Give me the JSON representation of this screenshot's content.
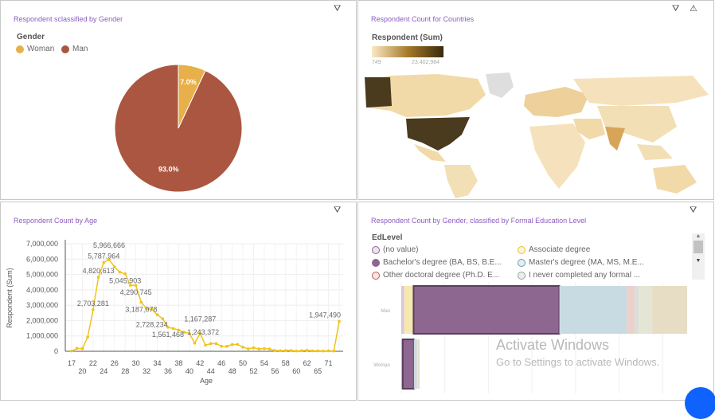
{
  "panels": {
    "gender": {
      "title": "Respondent sclassified by Gender",
      "legend_title": "Gender"
    },
    "countries": {
      "title": "Respondent Count for Countries",
      "legend_title": "Respondent (Sum)",
      "scale_min": "749",
      "scale_max": "23,402,984",
      "scale_colors": [
        "#fbe9c4",
        "#a67a2a",
        "#3b2a0c"
      ]
    },
    "age": {
      "title": "Respondent Count by Age"
    },
    "edu": {
      "title": "Respondent Count by Gender, classified by Formal Education Level",
      "legend_title": "EdLevel"
    }
  },
  "icons": [
    "filter-icon",
    "warning-icon",
    "scroll-up-icon",
    "scroll-down-icon",
    "chat-icon"
  ],
  "watermark": {
    "line1": "Activate Windows",
    "line2": "Go to Settings to activate Windows."
  },
  "chart_data": [
    {
      "type": "pie",
      "title": "Respondent sclassified by Gender",
      "legend_placement": "top-left",
      "slices": [
        {
          "name": "Woman",
          "value": 7.0,
          "label": "7.0%",
          "color": "#e8b04a"
        },
        {
          "name": "Man",
          "value": 93.0,
          "label": "93.0%",
          "color": "#ab5640"
        }
      ]
    },
    {
      "type": "line",
      "title": "Respondent Count by Age",
      "xlabel": "Age",
      "ylabel": "Respondent (Sum)",
      "ylim": [
        0,
        7000000
      ],
      "grid": true,
      "yticks": [
        "0",
        "1,000,000",
        "2,000,000",
        "3,000,000",
        "4,000,000",
        "5,000,000",
        "6,000,000",
        "7,000,000"
      ],
      "x": [
        "17",
        "18",
        "20",
        "21",
        "22",
        "23",
        "24",
        "25",
        "26",
        "27",
        "28",
        "29",
        "30",
        "31",
        "32",
        "33",
        "34",
        "35",
        "36",
        "37",
        "38",
        "39",
        "40",
        "41",
        "42",
        "43",
        "44",
        "45",
        "46",
        "47",
        "48",
        "49",
        "50",
        "51",
        "52",
        "53",
        "54",
        "55",
        "56",
        "57",
        "58",
        "59",
        "60",
        "61",
        "62",
        "64",
        "65",
        "68",
        "71",
        "72",
        "73"
      ],
      "xtick_labels": [
        "17",
        "20",
        "22",
        "24",
        "26",
        "28",
        "30",
        "32",
        "34",
        "36",
        "38",
        "40",
        "42",
        "44",
        "46",
        "48",
        "50",
        "52",
        "54",
        "56",
        "58",
        "60",
        "62",
        "65",
        "71"
      ],
      "values": [
        20000,
        190000,
        170000,
        930000,
        2703281,
        4820613,
        5787964,
        5966666,
        5500000,
        5150000,
        5045903,
        4290000,
        4290745,
        3187078,
        2780000,
        2728234,
        2380000,
        2120000,
        1561468,
        1480000,
        1380000,
        1243372,
        1160000,
        530000,
        1167287,
        400000,
        500000,
        500000,
        330000,
        320000,
        440000,
        450000,
        270000,
        160000,
        230000,
        150000,
        180000,
        150000,
        50000,
        40000,
        50000,
        50000,
        20000,
        40000,
        60000,
        30000,
        30000,
        20000,
        30000,
        20000,
        1947490
      ],
      "data_labels": {
        "22": "2,703,281",
        "23": "4,820,613",
        "24": "5,787,964",
        "25": "5,966,666",
        "28": "5,045,903",
        "30": "4,290,745",
        "31": "3,187,078",
        "33": "2,728,234",
        "36": "1,561,468",
        "39": "1,243,372",
        "42": "1,167,287",
        "73": "1,947,490"
      }
    },
    {
      "type": "bar",
      "orientation": "horizontal",
      "stacked": true,
      "title": "Respondent Count by Gender, classified by Formal Education Level",
      "legend_title": "EdLevel",
      "legend_placement": "top",
      "categories": [
        "Man",
        "Woman"
      ],
      "series": [
        {
          "name": "(no value)",
          "color": "#d8c8dc",
          "values": [
            1.0,
            0.3
          ]
        },
        {
          "name": "Associate degree",
          "color": "#f7e7b0",
          "values": [
            3.3,
            0.2
          ]
        },
        {
          "name": "Bachelor's degree (BA, BS, B.E...",
          "color": "#8e6791",
          "values": [
            51.0,
            3.9
          ]
        },
        {
          "name": "Master's degree (MA, MS, M.E...",
          "color": "#c9dbe2",
          "values": [
            23.6,
            1.1
          ]
        },
        {
          "name": "Other doctoral degree (Ph.D. E...",
          "color": "#ebd0cc",
          "values": [
            2.8,
            0.1
          ]
        },
        {
          "name": "I never completed any formal ...",
          "color": "#d9ded8",
          "values": [
            1.4,
            0.1
          ]
        },
        {
          "color": "#e4e5d4",
          "values": [
            4.7,
            0.1
          ]
        },
        {
          "color": "#e7dcc4",
          "values": [
            12.2,
            0.6
          ]
        }
      ]
    }
  ]
}
